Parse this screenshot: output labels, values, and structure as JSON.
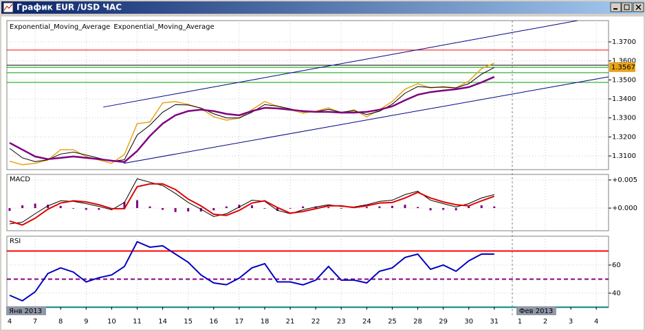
{
  "window": {
    "title": "График EUR /USD ЧАС"
  },
  "x_axis": {
    "xlim": [
      -0.108,
      23.48
    ],
    "x": [
      0,
      0.5,
      1,
      1.5,
      2,
      2.5,
      3,
      3.5,
      4,
      4.5,
      5,
      5.5,
      6,
      6.5,
      7,
      7.5,
      8,
      8.5,
      9,
      9.5,
      10,
      10.5,
      11,
      11.5,
      12,
      12.5,
      13,
      13.5,
      14,
      14.5,
      15,
      15.5,
      16,
      16.5,
      17,
      17.5,
      18,
      18.5,
      19
    ],
    "categories": [
      "4",
      "7",
      "8",
      "9",
      "10",
      "11",
      "14",
      "15",
      "16",
      "17",
      "18",
      "21",
      "22",
      "23",
      "24",
      "25",
      "28",
      "29",
      "30",
      "31",
      "1",
      "2",
      "3",
      "4"
    ],
    "month_labels": [
      {
        "label": "Янв 2013",
        "index": 0
      },
      {
        "label": "Фев 2013",
        "index": 20
      }
    ],
    "grid": true
  },
  "chart_data": [
    {
      "type": "line",
      "ylim": [
        1.3028,
        1.3812
      ],
      "yticks": [
        {
          "value": 1.37,
          "label": "1.3700"
        },
        {
          "value": 1.36,
          "label": "1.3600"
        },
        {
          "value": 1.35,
          "label": "1.3500"
        },
        {
          "value": 1.34,
          "label": "1.3400"
        },
        {
          "value": 1.33,
          "label": "1.3300"
        },
        {
          "value": 1.32,
          "label": "1.3200"
        },
        {
          "value": 1.31,
          "label": "1.3100"
        }
      ],
      "last_price": 1.3567,
      "series": [
        {
          "color": "#e8a317",
          "values": [
            1.3072,
            1.3054,
            1.3061,
            1.3079,
            1.3133,
            1.3133,
            1.3097,
            1.3079,
            1.3061,
            1.3108,
            1.327,
            1.3278,
            1.3379,
            1.3386,
            1.3371,
            1.335,
            1.3306,
            1.3288,
            1.3299,
            1.3343,
            1.3386,
            1.3361,
            1.3343,
            1.3325,
            1.3335,
            1.3353,
            1.3325,
            1.3343,
            1.3306,
            1.3343,
            1.3386,
            1.3451,
            1.348,
            1.3458,
            1.3465,
            1.3458,
            1.3494,
            1.3559,
            1.3588
          ]
        },
        {
          "name": "Exponential_Moving_Average",
          "color": "#000000",
          "values": [
            1.314,
            1.309,
            1.307,
            1.308,
            1.311,
            1.312,
            1.3105,
            1.3088,
            1.3072,
            1.308,
            1.321,
            1.3262,
            1.333,
            1.337,
            1.3368,
            1.3352,
            1.3322,
            1.33,
            1.33,
            1.333,
            1.337,
            1.3362,
            1.3348,
            1.3332,
            1.3333,
            1.3345,
            1.333,
            1.3338,
            1.3318,
            1.3335,
            1.3372,
            1.343,
            1.3465,
            1.346,
            1.3462,
            1.3458,
            1.348,
            1.353,
            1.3565
          ]
        },
        {
          "name": "Exponential_Moving_Average",
          "color": "#800080",
          "values": [
            1.3169,
            1.3133,
            1.3097,
            1.3083,
            1.309,
            1.3097,
            1.309,
            1.3083,
            1.3075,
            1.3068,
            1.3126,
            1.3205,
            1.327,
            1.3314,
            1.3336,
            1.3343,
            1.3336,
            1.3321,
            1.3314,
            1.3336,
            1.3353,
            1.335,
            1.3343,
            1.3336,
            1.3332,
            1.3332,
            1.3328,
            1.3328,
            1.3332,
            1.3343,
            1.3361,
            1.3393,
            1.3422,
            1.3436,
            1.3444,
            1.3451,
            1.3462,
            1.3487,
            1.3516
          ]
        }
      ],
      "levels": [
        {
          "value": 1.3657,
          "color": "#ff0000"
        },
        {
          "value": 1.3577,
          "color": "#000000"
        },
        {
          "value": 1.3566,
          "color": "#00a000"
        },
        {
          "value": 1.3538,
          "color": "#00a000"
        },
        {
          "value": 1.3487,
          "color": "#00a000"
        }
      ],
      "trend_lines": [
        {
          "x": [
            3.67,
            22.26
          ],
          "y": [
            1.3357,
            1.3812
          ],
          "color": "#000080"
        },
        {
          "x": [
            4.47,
            23.48
          ],
          "y": [
            1.3061,
            1.3516
          ],
          "color": "#000080"
        }
      ]
    },
    {
      "type": "macd",
      "title": "MACD",
      "ylim": [
        -0.00402,
        0.00598
      ],
      "yticks": [
        {
          "value": 0.005,
          "label": "+0.005"
        },
        {
          "value": 0,
          "label": "+0.000"
        }
      ],
      "series": [
        {
          "color": "#800080",
          "kind": "bar",
          "values": [
            -0.0005,
            0.0005,
            0.0008,
            0.0006,
            0.0004,
            -0.0001,
            -0.0003,
            -0.0003,
            -0.0002,
            0.0011,
            0.0014,
            0.0003,
            -0.0003,
            -0.0007,
            -0.0006,
            -0.0006,
            -0.0004,
            0.0003,
            0.0006,
            0.0005,
            -0.0001,
            -0.0005,
            -0.0001,
            0.0003,
            0.0003,
            0.0002,
            -0.0001,
            0.0001,
            0.0002,
            0.0003,
            0.0004,
            0.0006,
            0.0002,
            -0.0004,
            -0.0003,
            -0.0004,
            0.0004,
            0.0005,
            0.0003
          ]
        },
        {
          "color": "#000000",
          "kind": "line",
          "values": [
            -0.0028,
            -0.0025,
            -0.001,
            0.0004,
            0.0013,
            0.0012,
            0.0008,
            0.0003,
            -0.0003,
            0.001,
            0.0052,
            0.0046,
            0.004,
            0.0026,
            0.001,
            -0.0002,
            -0.0015,
            -0.001,
            0.0002,
            0.0014,
            0.0012,
            -0.0004,
            -0.001,
            -0.0003,
            0.0002,
            0.0006,
            0.0003,
            0.0002,
            0.0006,
            0.0012,
            0.0014,
            0.0024,
            0.003,
            0.0014,
            0.0008,
            0.0002,
            0.0008,
            0.0018,
            0.0024
          ]
        },
        {
          "color": "#e00000",
          "kind": "line",
          "values": [
            -0.0023,
            -0.003,
            -0.0018,
            -0.0002,
            0.0009,
            0.0013,
            0.0011,
            0.0006,
            -0.0001,
            -0.0001,
            0.0038,
            0.0043,
            0.0043,
            0.0033,
            0.0016,
            0.0004,
            -0.0011,
            -0.0013,
            -0.0004,
            0.0009,
            0.0013,
            0.0001,
            -0.0009,
            -0.0006,
            -0.0001,
            0.0004,
            0.0004,
            0.0001,
            0.0004,
            0.0009,
            0.001,
            0.0018,
            0.0028,
            0.0018,
            0.0011,
            0.0006,
            0.0004,
            0.0013,
            0.0021
          ]
        }
      ]
    },
    {
      "type": "rsi",
      "title": "RSI",
      "ylim": [
        30.2,
        80.5
      ],
      "yticks": [
        60,
        40
      ],
      "series": [
        {
          "color": "#0000c0",
          "kind": "line",
          "values": [
            38.5,
            34.6,
            41,
            54,
            58,
            55,
            48,
            51,
            53,
            59,
            76.6,
            72.7,
            73.7,
            67.8,
            62,
            53,
            47.3,
            46,
            50.7,
            58,
            61,
            48,
            48,
            45.9,
            49.3,
            59,
            49.3,
            49.3,
            47.3,
            55.6,
            58,
            65.4,
            67.8,
            57,
            60,
            55.6,
            63,
            67.8,
            67.8
          ]
        }
      ],
      "levels": [
        {
          "value": 70,
          "color": "#ff0000"
        },
        {
          "value": 50,
          "color": "#800080",
          "dash": true
        },
        {
          "value": 30,
          "color": "#008080"
        }
      ]
    }
  ]
}
